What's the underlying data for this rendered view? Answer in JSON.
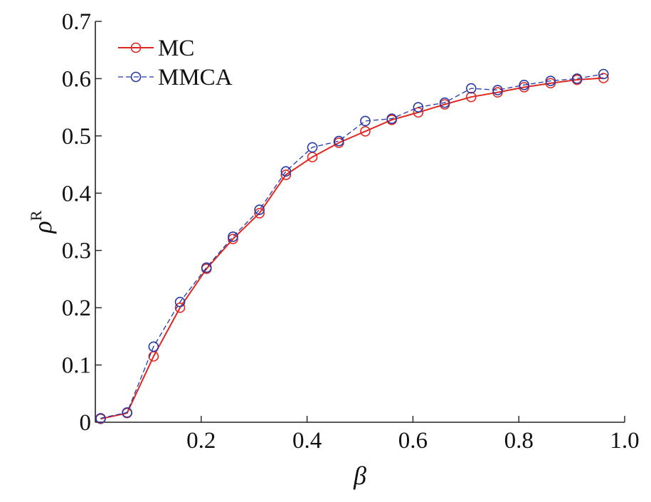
{
  "chart_data": {
    "type": "line",
    "xlabel": "β",
    "ylabel": "ρ",
    "ylabel_superscript": "R",
    "xlim": [
      0.0,
      1.0
    ],
    "ylim": [
      0.0,
      0.7
    ],
    "x_ticks": [
      {
        "value": 0.2,
        "label": "0.2"
      },
      {
        "value": 0.4,
        "label": "0.4"
      },
      {
        "value": 0.6,
        "label": "0.6"
      },
      {
        "value": 0.8,
        "label": "0.8"
      },
      {
        "value": 1.0,
        "label": "1.0"
      }
    ],
    "y_ticks": [
      {
        "value": 0.0,
        "label": "0"
      },
      {
        "value": 0.1,
        "label": "0.1"
      },
      {
        "value": 0.2,
        "label": "0.2"
      },
      {
        "value": 0.3,
        "label": "0.3"
      },
      {
        "value": 0.4,
        "label": "0.4"
      },
      {
        "value": 0.5,
        "label": "0.5"
      },
      {
        "value": 0.6,
        "label": "0.6"
      },
      {
        "value": 0.7,
        "label": "0.7"
      }
    ],
    "grid": false,
    "legend_position": "top-left",
    "x": [
      0.01,
      0.06,
      0.11,
      0.16,
      0.21,
      0.26,
      0.31,
      0.36,
      0.41,
      0.46,
      0.51,
      0.56,
      0.61,
      0.66,
      0.71,
      0.76,
      0.81,
      0.86,
      0.91,
      0.96
    ],
    "series": [
      {
        "name": "MC",
        "color": "#e0261f",
        "line_style": "solid",
        "marker": "open-circle",
        "values": [
          0.006,
          0.016,
          0.115,
          0.2,
          0.268,
          0.32,
          0.365,
          0.432,
          0.463,
          0.488,
          0.508,
          0.528,
          0.541,
          0.555,
          0.568,
          0.576,
          0.585,
          0.592,
          0.598,
          0.601
        ]
      },
      {
        "name": "MMCA",
        "color": "#2438a8",
        "line_style": "dashed",
        "marker": "open-circle",
        "values": [
          0.007,
          0.017,
          0.132,
          0.21,
          0.27,
          0.324,
          0.371,
          0.438,
          0.48,
          0.491,
          0.526,
          0.53,
          0.55,
          0.558,
          0.583,
          0.58,
          0.589,
          0.596,
          0.6,
          0.608
        ]
      }
    ]
  }
}
